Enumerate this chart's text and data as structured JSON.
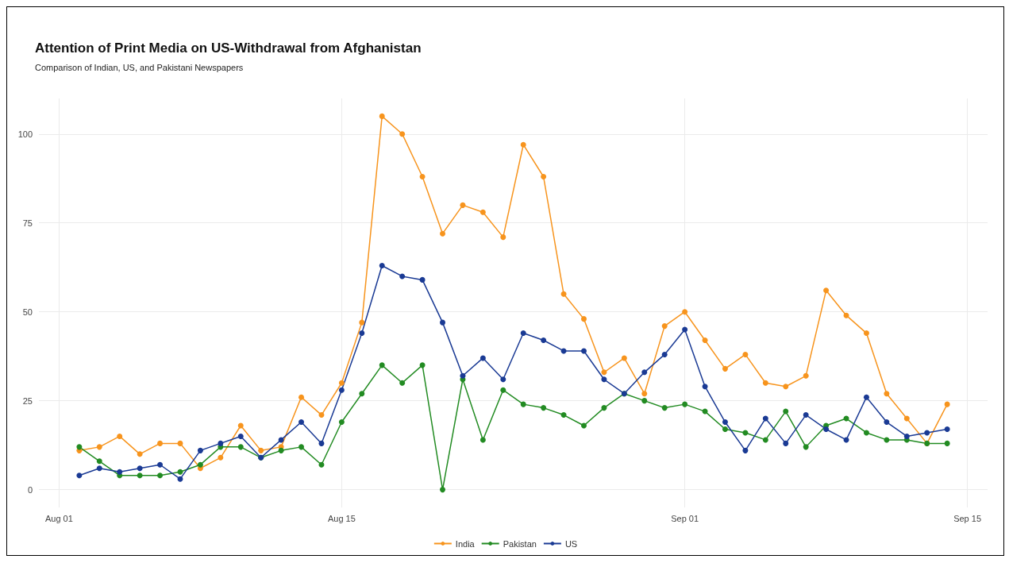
{
  "chart_data": {
    "type": "line",
    "title": "Attention of Print Media on US-Withdrawal from Afghanistan",
    "subtitle": "Comparison of Indian, US, and Pakistani Newspapers",
    "x": [
      "--08-02",
      "--08-03",
      "--08-04",
      "--08-05",
      "--08-06",
      "--08-07",
      "--08-08",
      "--08-09",
      "--08-10",
      "--08-11",
      "--08-12",
      "--08-13",
      "--08-14",
      "--08-15",
      "--08-16",
      "--08-17",
      "--08-18",
      "--08-19",
      "--08-20",
      "--08-21",
      "--08-22",
      "--08-23",
      "--08-24",
      "--08-25",
      "--08-26",
      "--08-27",
      "--08-28",
      "--08-29",
      "--08-30",
      "--08-31",
      "--09-01",
      "--09-02",
      "--09-03",
      "--09-04",
      "--09-05",
      "--09-06",
      "--09-07",
      "--09-08",
      "--09-09",
      "--09-10",
      "--09-11",
      "--09-12",
      "--09-13",
      "--09-14"
    ],
    "series": [
      {
        "name": "India",
        "color": "#f7941d",
        "values": [
          11,
          12,
          15,
          10,
          13,
          13,
          6,
          9,
          18,
          11,
          12,
          26,
          21,
          30,
          47,
          105,
          100,
          88,
          72,
          80,
          78,
          71,
          97,
          88,
          55,
          48,
          33,
          37,
          27,
          46,
          50,
          42,
          34,
          38,
          30,
          29,
          32,
          56,
          49,
          44,
          27,
          20,
          13,
          24
        ]
      },
      {
        "name": "Pakistan",
        "color": "#228b22",
        "values": [
          12,
          8,
          4,
          4,
          4,
          5,
          7,
          12,
          12,
          9,
          11,
          12,
          7,
          19,
          27,
          35,
          30,
          35,
          0,
          31,
          14,
          28,
          24,
          23,
          21,
          18,
          23,
          27,
          25,
          23,
          24,
          22,
          17,
          16,
          14,
          22,
          12,
          18,
          20,
          16,
          14,
          14,
          13,
          13
        ]
      },
      {
        "name": "US",
        "color": "#1a3a94",
        "values": [
          4,
          6,
          5,
          6,
          7,
          3,
          11,
          13,
          15,
          9,
          14,
          19,
          13,
          28,
          44,
          63,
          60,
          59,
          47,
          32,
          37,
          31,
          44,
          42,
          39,
          39,
          31,
          27,
          33,
          38,
          45,
          29,
          19,
          11,
          20,
          13,
          21,
          17,
          14,
          26,
          19,
          15,
          16,
          17
        ]
      }
    ],
    "xlim": [
      "--07-31",
      "--09-16"
    ],
    "xticks": [
      {
        "value": "--08-01",
        "label": "Aug 01"
      },
      {
        "value": "--08-15",
        "label": "Aug 15"
      },
      {
        "value": "--09-01",
        "label": "Sep 01"
      },
      {
        "value": "--09-15",
        "label": "Sep 15"
      }
    ],
    "ylim": [
      -5,
      110
    ],
    "yticks": [
      0,
      25,
      50,
      75,
      100
    ],
    "grid": true,
    "legend": "bottom",
    "marker": "circle",
    "line_style": "solid"
  }
}
